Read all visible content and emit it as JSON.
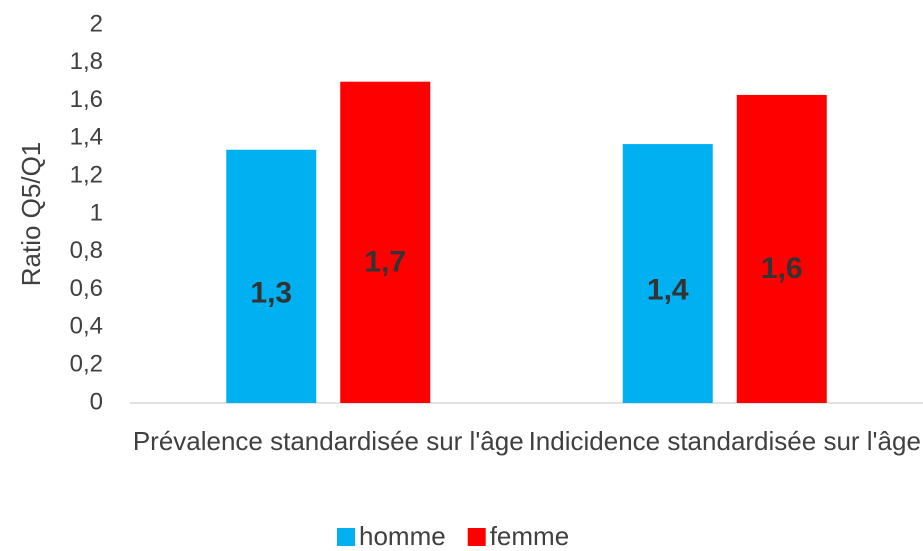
{
  "chart_data": {
    "type": "bar",
    "y_label": "Ratio Q5/Q1",
    "categories": [
      "Prévalence standardisée sur l'âge",
      "Indicidence standardisée sur l'âge"
    ],
    "series": [
      {
        "name": "homme",
        "color": "#00b0f0",
        "values": [
          1.34,
          1.37
        ],
        "value_labels": [
          "1,3",
          "1,4"
        ]
      },
      {
        "name": "femme",
        "color": "#ff0000",
        "values": [
          1.7,
          1.63
        ],
        "value_labels": [
          "1,7",
          "1,6"
        ]
      }
    ],
    "ylim": [
      0,
      2
    ],
    "yticks": [
      0,
      {
        "value": 0.2,
        "label": "0,2"
      },
      {
        "value": 0.4,
        "label": "0,4"
      },
      {
        "value": 0.6,
        "label": "0,6"
      },
      {
        "value": 0.8,
        "label": "0,8"
      },
      1,
      {
        "value": 1.2,
        "label": "1,2"
      },
      {
        "value": 1.4,
        "label": "1,4"
      },
      {
        "value": 1.6,
        "label": "1,6"
      },
      {
        "value": 1.8,
        "label": "1,8"
      },
      2
    ],
    "grid": false,
    "legend": "bottom"
  }
}
